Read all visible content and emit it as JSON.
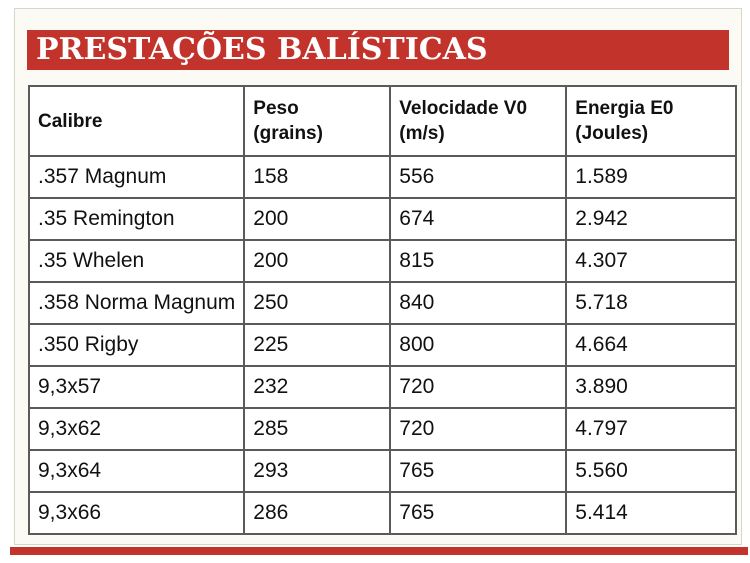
{
  "title": "PRESTAÇÕES BALÍSTICAS",
  "colors": {
    "banner": "#c2342b",
    "background": "#fbfaf4",
    "border": "#5a5a5a"
  },
  "table": {
    "headers": [
      {
        "line1": "Calibre",
        "line2": ""
      },
      {
        "line1": "Peso",
        "line2": "(grains)"
      },
      {
        "line1": "Velocidade V0",
        "line2": "(m/s)"
      },
      {
        "line1": "Energia E0",
        "line2": "(Joules)"
      }
    ],
    "rows": [
      [
        ".357 Magnum",
        "158",
        "556",
        "1.589"
      ],
      [
        ".35 Remington",
        "200",
        "674",
        "2.942"
      ],
      [
        ".35 Whelen",
        "200",
        "815",
        "4.307"
      ],
      [
        ".358 Norma Magnum",
        "250",
        "840",
        "5.718"
      ],
      [
        ".350 Rigby",
        "225",
        "800",
        "4.664"
      ],
      [
        "9,3x57",
        "232",
        "720",
        "3.890"
      ],
      [
        "9,3x62",
        "285",
        "720",
        "4.797"
      ],
      [
        "9,3x64",
        "293",
        "765",
        "5.560"
      ],
      [
        "9,3x66",
        "286",
        "765",
        "5.414"
      ]
    ]
  }
}
